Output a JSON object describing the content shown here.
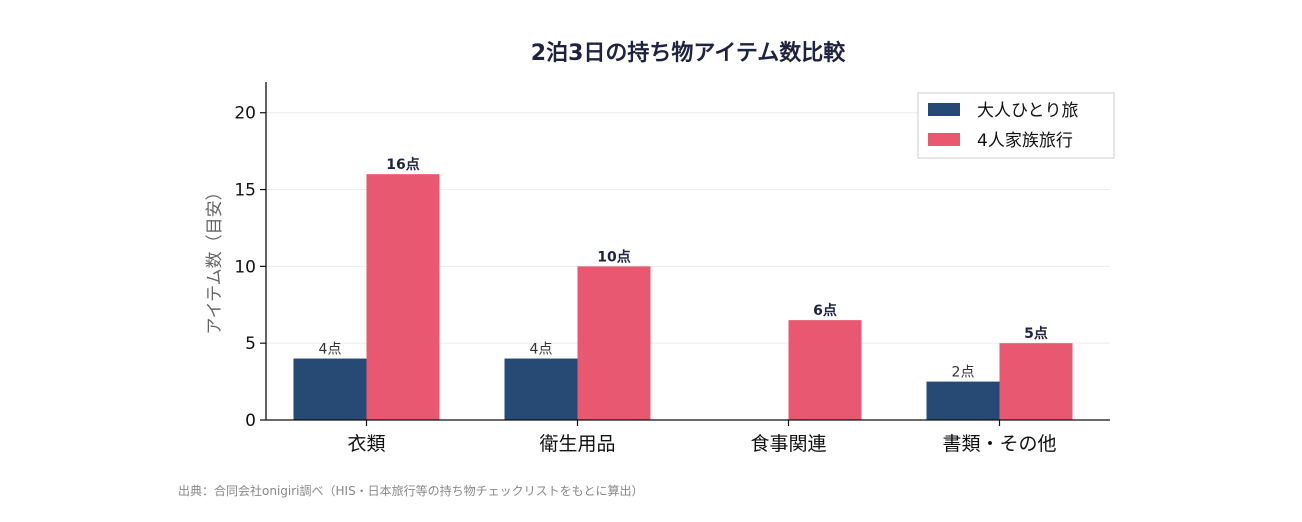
{
  "chart_data": {
    "type": "bar",
    "title": "2泊3日の持ち物アイテム数比較",
    "ylabel": "アイテム数（目安）",
    "xlabel": "",
    "ylim": [
      0,
      22
    ],
    "yticks": [
      "0",
      "5",
      "10",
      "15",
      "20"
    ],
    "categories": [
      "衣類",
      "衛生用品",
      "食事関連",
      "書類・その他"
    ],
    "series": [
      {
        "name": "大人ひとり旅",
        "color": "#264a73",
        "values": [
          4,
          4,
          0,
          2.5
        ],
        "labels": [
          "4点",
          "4点",
          "",
          "2点"
        ]
      },
      {
        "name": "4人家族旅行",
        "color": "#e85870",
        "values": [
          16,
          10,
          6.5,
          5
        ],
        "labels": [
          "16点",
          "10点",
          "6点",
          "5点"
        ]
      }
    ],
    "grid": true,
    "legend_position": "top-right"
  },
  "source_note": "出典：合同会社onigiri調べ（HIS・日本旅行等の持ち物チェックリストをもとに算出）"
}
